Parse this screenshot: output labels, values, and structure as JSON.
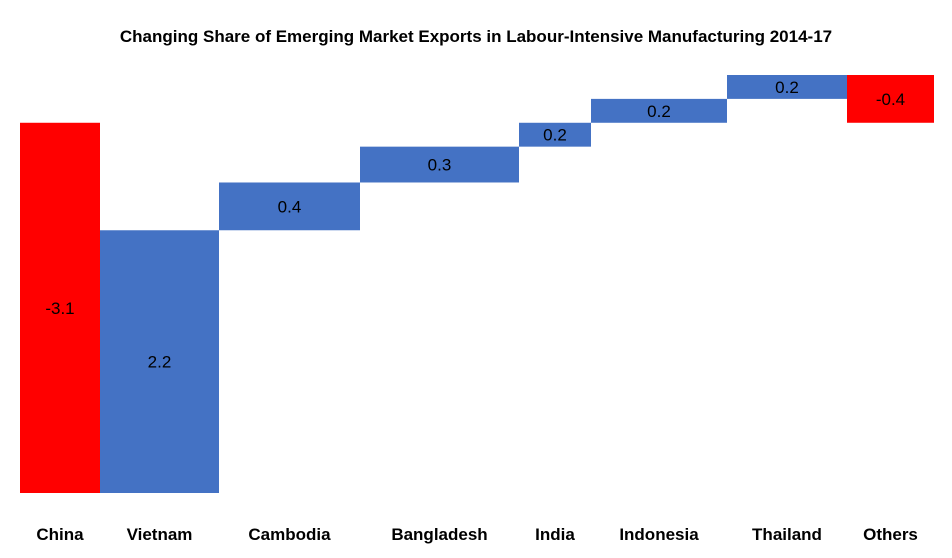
{
  "chart_data": {
    "type": "bar",
    "subtype": "waterfall",
    "title": "Changing Share of Emerging Market Exports in Labour-Intensive Manufacturing 2014-17",
    "categories": [
      "China",
      "Vietnam",
      "Cambodia",
      "Bangladesh",
      "India",
      "Indonesia",
      "Thailand",
      "Others"
    ],
    "values": [
      -3.1,
      2.2,
      0.4,
      0.3,
      0.2,
      0.2,
      0.2,
      -0.4
    ],
    "value_labels": [
      "-3.1",
      "2.2",
      "0.4",
      "0.3",
      "0.2",
      "0.2",
      "0.2",
      "-0.4"
    ],
    "xlabel": "",
    "ylabel": "",
    "grid": false,
    "legend": "none",
    "colors": {
      "decrease": "#ff0000",
      "increase": "#4472c4"
    }
  }
}
